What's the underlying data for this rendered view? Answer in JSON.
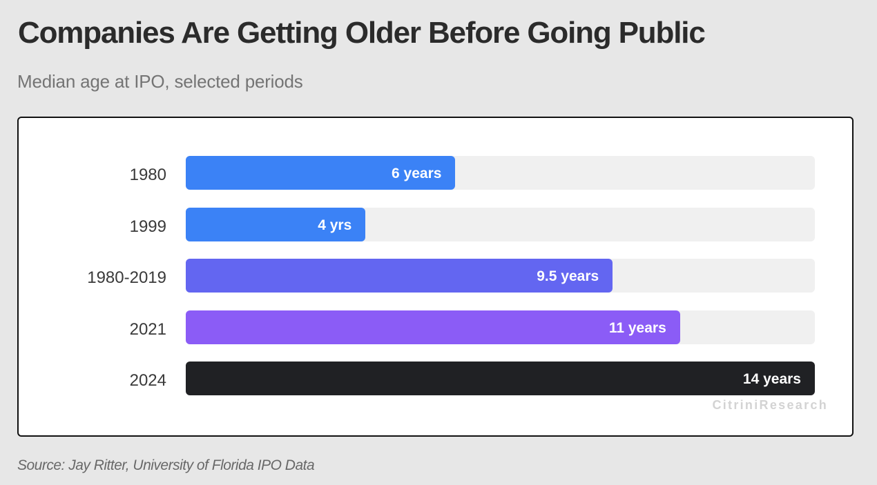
{
  "header": {
    "title": "Companies Are Getting Older Before Going Public",
    "subtitle": "Median age at IPO, selected periods"
  },
  "footer": {
    "source": "Source: Jay Ritter, University of Florida IPO Data"
  },
  "watermark": "CitriniResearch",
  "colors": {
    "page_background": "#e7e7e7",
    "panel_background": "#ffffff",
    "panel_border": "#101010",
    "track": "#f0f0f0",
    "bar_blue": "#3b82f6",
    "bar_indigo": "#6366f1",
    "bar_violet": "#8b5cf6",
    "bar_black": "#202124",
    "value_text": "#ffffff"
  },
  "chart_data": {
    "type": "bar",
    "orientation": "horizontal",
    "title": "Companies Are Getting Older Before Going Public",
    "subtitle": "Median age at IPO, selected periods",
    "xlabel": "",
    "ylabel": "",
    "xlim": [
      0,
      14
    ],
    "grid": false,
    "legend": false,
    "categories": [
      "1980",
      "1999",
      "1980-2019",
      "2021",
      "2024"
    ],
    "values": [
      6,
      4,
      9.5,
      11,
      14
    ],
    "value_labels": [
      "6 years",
      "4 yrs",
      "9.5 years",
      "11 years",
      "14 years"
    ],
    "bar_colors": [
      "#3b82f6",
      "#3b82f6",
      "#6366f1",
      "#8b5cf6",
      "#202124"
    ]
  }
}
